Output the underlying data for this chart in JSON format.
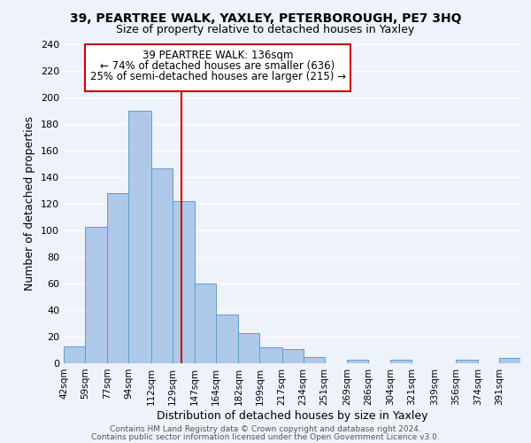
{
  "title1": "39, PEARTREE WALK, YAXLEY, PETERBOROUGH, PE7 3HQ",
  "title2": "Size of property relative to detached houses in Yaxley",
  "xlabel": "Distribution of detached houses by size in Yaxley",
  "ylabel": "Number of detached properties",
  "bar_color": "#adc8e8",
  "bar_edge_color": "#5a9fd4",
  "background_color": "#eef2fa",
  "grid_color": "#ffffff",
  "bin_labels": [
    "42sqm",
    "59sqm",
    "77sqm",
    "94sqm",
    "112sqm",
    "129sqm",
    "147sqm",
    "164sqm",
    "182sqm",
    "199sqm",
    "217sqm",
    "234sqm",
    "251sqm",
    "269sqm",
    "286sqm",
    "304sqm",
    "321sqm",
    "339sqm",
    "356sqm",
    "374sqm",
    "391sqm"
  ],
  "bin_edges": [
    42,
    59,
    77,
    94,
    112,
    129,
    147,
    164,
    182,
    199,
    217,
    234,
    251,
    269,
    286,
    304,
    321,
    339,
    356,
    374,
    391
  ],
  "bin_widths": [
    17,
    18,
    17,
    18,
    17,
    18,
    17,
    18,
    17,
    18,
    17,
    17,
    18,
    17,
    18,
    17,
    18,
    17,
    18,
    17,
    17
  ],
  "bar_heights": [
    13,
    103,
    128,
    190,
    147,
    122,
    60,
    37,
    23,
    12,
    11,
    5,
    0,
    3,
    0,
    3,
    0,
    0,
    3,
    0,
    4
  ],
  "vline_x": 136,
  "vline_color": "#cc0000",
  "annotation_title": "39 PEARTREE WALK: 136sqm",
  "annotation_line1": "← 74% of detached houses are smaller (636)",
  "annotation_line2": "25% of semi-detached houses are larger (215) →",
  "annotation_box_color": "#ffffff",
  "annotation_box_edge": "#cc0000",
  "ylim": [
    0,
    240
  ],
  "yticks": [
    0,
    20,
    40,
    60,
    80,
    100,
    120,
    140,
    160,
    180,
    200,
    220,
    240
  ],
  "footer1": "Contains HM Land Registry data © Crown copyright and database right 2024.",
  "footer2": "Contains public sector information licensed under the Open Government Licence v3.0."
}
